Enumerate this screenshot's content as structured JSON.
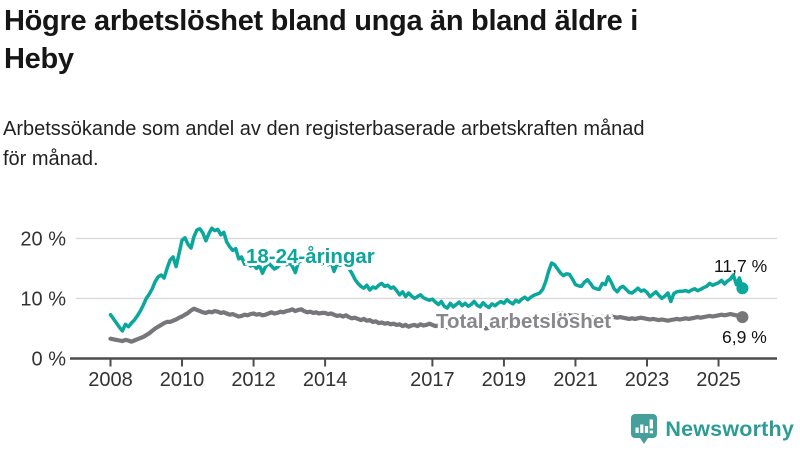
{
  "title": "Högre arbetslöshet bland unga än bland äldre i\nHeby",
  "subtitle": "Arbetssökande som andel av den registerbaserade arbetskraften månad\nför månad.",
  "branding": {
    "name": "Newsworthy",
    "icon": "newsworthy-speech-bubble-bar-chart-icon"
  },
  "colors": {
    "background": "#ffffff",
    "title_text": "#161616",
    "subtitle_text": "#222222",
    "axis": "#4d4d4d",
    "grid": "#d9d9d9",
    "tick_label": "#333333",
    "value_label": "#111111",
    "youth_line": "#0ba69c",
    "total_line": "#76767b",
    "total_label_text": "#87878c",
    "brand_text": "#2d9c95",
    "brand_icon": "#45a09b"
  },
  "chart_data": {
    "type": "line",
    "unit": "%",
    "frequency": "monthly",
    "x_start": "2008-01",
    "x_end": "2025-09",
    "grid": "horizontal-only",
    "legend": "inline-line-labels",
    "ylim": [
      0,
      23
    ],
    "y_ticks": [
      {
        "label": "0 %",
        "value": 0
      },
      {
        "label": "10 %",
        "value": 10
      },
      {
        "label": "20 %",
        "value": 20
      }
    ],
    "x_ticks": [
      {
        "label": "2008",
        "year": 2008
      },
      {
        "label": "2010",
        "year": 2010
      },
      {
        "label": "2012",
        "year": 2012
      },
      {
        "label": "2014",
        "year": 2014
      },
      {
        "label": "2017",
        "year": 2017
      },
      {
        "label": "2019",
        "year": 2019
      },
      {
        "label": "2021",
        "year": 2021
      },
      {
        "label": "2023",
        "year": 2023
      },
      {
        "label": "2025",
        "year": 2025
      }
    ],
    "series": [
      {
        "id": "youth",
        "name": "18-24-åringar",
        "color": "#0ba69c",
        "end_label": "11,7 %",
        "last_value": 11.7,
        "values": [
          7.3,
          6.6,
          5.9,
          5.2,
          4.6,
          5.7,
          5.3,
          5.9,
          6.4,
          7.1,
          7.9,
          8.9,
          10.0,
          10.7,
          11.6,
          12.8,
          13.6,
          13.9,
          13.4,
          15.0,
          16.4,
          16.9,
          15.3,
          17.5,
          19.7,
          20.1,
          19.0,
          18.4,
          20.3,
          21.4,
          21.6,
          20.9,
          19.6,
          20.8,
          21.7,
          21.3,
          21.5,
          20.6,
          21.0,
          19.4,
          18.6,
          18.0,
          18.3,
          16.6,
          16.9,
          15.7,
          15.9,
          15.4,
          15.6,
          15.0,
          15.5,
          14.2,
          15.3,
          15.9,
          15.4,
          14.9,
          15.2,
          15.7,
          16.0,
          15.6,
          15.9,
          15.4,
          14.3,
          16.0,
          16.3,
          16.6,
          16.1,
          15.8,
          16.2,
          16.4,
          16.1,
          15.8,
          16.0,
          15.6,
          16.1,
          14.5,
          15.8,
          15.5,
          15.9,
          15.4,
          15.0,
          14.2,
          13.2,
          12.5,
          12.0,
          11.7,
          12.2,
          11.4,
          11.9,
          11.7,
          12.2,
          12.5,
          12.0,
          12.2,
          11.7,
          11.9,
          11.3,
          10.6,
          11.1,
          10.3,
          10.9,
          10.4,
          10.0,
          10.3,
          10.6,
          10.1,
          9.9,
          9.7,
          9.9,
          9.4,
          9.0,
          9.5,
          8.7,
          8.4,
          9.2,
          8.6,
          9.0,
          9.4,
          8.8,
          9.2,
          8.7,
          9.0,
          9.5,
          8.9,
          8.6,
          9.3,
          8.8,
          8.5,
          9.1,
          8.8,
          9.2,
          9.5,
          9.2,
          9.8,
          9.4,
          9.1,
          9.7,
          9.4,
          9.9,
          10.2,
          9.8,
          10.2,
          10.5,
          10.7,
          10.9,
          11.5,
          12.8,
          14.5,
          15.9,
          15.6,
          14.9,
          14.2,
          13.8,
          14.1,
          14.0,
          13.2,
          12.3,
          12.1,
          12.0,
          12.7,
          13.1,
          12.5,
          11.8,
          11.6,
          11.5,
          12.5,
          12.3,
          13.6,
          12.7,
          11.6,
          11.1,
          11.8,
          12.0,
          11.5,
          11.0,
          10.9,
          11.3,
          11.7,
          11.2,
          11.4,
          11.0,
          10.3,
          10.7,
          11.1,
          10.5,
          10.0,
          10.4,
          10.9,
          9.5,
          10.8,
          11.1,
          11.2,
          11.2,
          11.3,
          11.1,
          11.4,
          11.6,
          11.3,
          11.5,
          11.8,
          12.0,
          12.5,
          12.2,
          12.4,
          12.6,
          13.0,
          12.4,
          12.9,
          13.2,
          13.9,
          12.3,
          13.4,
          11.7
        ]
      },
      {
        "id": "total",
        "name": "Total arbetslöshet",
        "color": "#76767b",
        "end_label": "6,9 %",
        "last_value": 6.9,
        "values": [
          3.3,
          3.2,
          3.1,
          3.0,
          2.9,
          3.1,
          3.0,
          2.8,
          3.0,
          3.2,
          3.4,
          3.6,
          3.9,
          4.2,
          4.6,
          5.0,
          5.3,
          5.6,
          5.9,
          6.1,
          6.1,
          6.3,
          6.5,
          6.8,
          7.0,
          7.3,
          7.6,
          8.0,
          8.3,
          8.1,
          7.9,
          7.7,
          7.6,
          7.8,
          7.7,
          7.9,
          7.8,
          7.6,
          7.7,
          7.5,
          7.3,
          7.4,
          7.2,
          7.0,
          7.1,
          7.3,
          7.2,
          7.4,
          7.5,
          7.3,
          7.4,
          7.2,
          7.3,
          7.5,
          7.7,
          7.5,
          7.6,
          7.8,
          7.7,
          7.9,
          8.0,
          8.2,
          7.9,
          8.1,
          8.2,
          7.9,
          7.7,
          7.8,
          7.6,
          7.7,
          7.5,
          7.6,
          7.6,
          7.4,
          7.5,
          7.3,
          7.1,
          7.2,
          7.0,
          7.2,
          6.9,
          6.7,
          6.8,
          6.6,
          6.4,
          6.6,
          6.3,
          6.4,
          6.1,
          6.2,
          5.9,
          6.0,
          5.8,
          5.9,
          5.7,
          5.8,
          5.6,
          5.7,
          5.4,
          5.6,
          5.3,
          5.5,
          5.6,
          5.4,
          5.7,
          5.5,
          5.6,
          5.8,
          5.6,
          5.4,
          5.5,
          5.3,
          5.4,
          5.2,
          5.3,
          5.1,
          5.3,
          5.4,
          5.2,
          5.4,
          5.4,
          5.3,
          5.2,
          5.3,
          5.1,
          5.2,
          5.0,
          5.1,
          5.2,
          5.1,
          5.2,
          5.3,
          5.2,
          5.3,
          5.4,
          5.3,
          5.4,
          5.5,
          5.4,
          5.5,
          5.6,
          5.5,
          5.6,
          5.7,
          5.8,
          6.0,
          6.4,
          6.9,
          7.3,
          7.5,
          7.4,
          7.5,
          7.4,
          7.3,
          7.2,
          7.1,
          7.2,
          7.1,
          7.0,
          7.1,
          7.0,
          6.9,
          6.8,
          6.9,
          7.0,
          6.9,
          7.0,
          7.1,
          7.0,
          6.9,
          6.8,
          6.9,
          6.8,
          6.7,
          6.6,
          6.7,
          6.6,
          6.7,
          6.8,
          6.7,
          6.6,
          6.5,
          6.6,
          6.5,
          6.4,
          6.5,
          6.4,
          6.3,
          6.4,
          6.5,
          6.6,
          6.5,
          6.6,
          6.7,
          6.6,
          6.7,
          6.8,
          6.9,
          6.8,
          6.9,
          7.0,
          7.1,
          7.0,
          7.1,
          7.2,
          7.3,
          7.2,
          7.3,
          7.4,
          7.3,
          7.2,
          7.1,
          6.9
        ]
      }
    ]
  }
}
